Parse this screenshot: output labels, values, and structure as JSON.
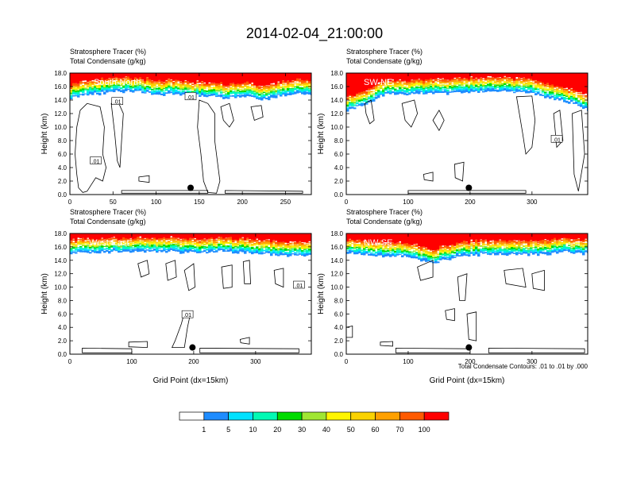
{
  "title": "2014-02-04_21:00:00",
  "colors": {
    "levels": [
      "#ffffff",
      "#1e8cff",
      "#00e1ff",
      "#00fab4",
      "#00dc00",
      "#a0e632",
      "#fff500",
      "#fad200",
      "#ffa000",
      "#ff5a00",
      "#ff0000"
    ]
  },
  "colorbar": {
    "labels": [
      "1",
      "5",
      "10",
      "20",
      "30",
      "40",
      "50",
      "60",
      "70",
      "100"
    ]
  },
  "chart_data": [
    {
      "type": "heatmap",
      "title": "South-North",
      "subtitle_left_1": "Stratosphere Tracer   (%)",
      "subtitle_left_2": "Total Condensate   (g/kg)",
      "ylabel": "Height (km)",
      "xlabel": "",
      "xlim": [
        0,
        280
      ],
      "xticks": [
        "0",
        "50",
        "100",
        "150",
        "200",
        "250"
      ],
      "xtick_values": [
        0,
        50,
        100,
        150,
        200,
        250
      ],
      "ylim": [
        0,
        18
      ],
      "yticks": [
        "0.0",
        "2.0",
        "4.0",
        "6.0",
        "8.0",
        "10.0",
        "12.0",
        "14.0",
        "16.0",
        "18.0"
      ],
      "contour_labels": [
        ".01",
        ".01",
        ".01"
      ],
      "marker_x": 140,
      "tropopause": [
        [
          0,
          14.2
        ],
        [
          20,
          14.8
        ],
        [
          40,
          15.0
        ],
        [
          60,
          15.3
        ],
        [
          80,
          15.2
        ],
        [
          100,
          14.8
        ],
        [
          120,
          14.9
        ],
        [
          140,
          14.6
        ],
        [
          160,
          14.5
        ],
        [
          180,
          14.3
        ],
        [
          200,
          14.6
        ],
        [
          220,
          14.0
        ],
        [
          240,
          14.5
        ],
        [
          260,
          14.9
        ],
        [
          280,
          14.9
        ]
      ]
    },
    {
      "type": "heatmap",
      "title": "SW-NE",
      "subtitle_left_1": "Stratosphere Tracer   (%)",
      "subtitle_left_2": "Total Condensate   (g/kg)",
      "ylabel": "Height (km)",
      "xlabel": "",
      "xlim": [
        0,
        390
      ],
      "xticks": [
        "0",
        "100",
        "200",
        "300"
      ],
      "xtick_values": [
        0,
        100,
        200,
        300
      ],
      "ylim": [
        0,
        18
      ],
      "yticks": [
        "0.0",
        "2.0",
        "4.0",
        "6.0",
        "8.0",
        "10.0",
        "12.0",
        "14.0",
        "16.0",
        "18.0"
      ],
      "contour_labels": [
        ".01"
      ],
      "marker_x": 198,
      "tropopause": [
        [
          0,
          12.5
        ],
        [
          30,
          13.2
        ],
        [
          60,
          14.8
        ],
        [
          100,
          14.9
        ],
        [
          150,
          15.0
        ],
        [
          200,
          15.2
        ],
        [
          250,
          15.3
        ],
        [
          300,
          15.0
        ],
        [
          340,
          14.0
        ],
        [
          370,
          13.3
        ],
        [
          390,
          12.5
        ]
      ]
    },
    {
      "type": "heatmap",
      "title": "West-East",
      "subtitle_left_1": "Stratosphere Tracer   (%)",
      "subtitle_left_2": "Total Condensate   (g/kg)",
      "ylabel": "Height (km)",
      "xlabel": "Grid Point (dx=15km)",
      "xlim": [
        0,
        390
      ],
      "xticks": [
        "0",
        "100",
        "200",
        "300"
      ],
      "xtick_values": [
        0,
        100,
        200,
        300
      ],
      "ylim": [
        0,
        18
      ],
      "yticks": [
        "0.0",
        "2.0",
        "4.0",
        "6.0",
        "8.0",
        "10.0",
        "12.0",
        "14.0",
        "16.0",
        "18.0"
      ],
      "contour_labels": [
        ".01",
        ".01"
      ],
      "marker_x": 198,
      "tropopause": [
        [
          0,
          15.0
        ],
        [
          50,
          15.2
        ],
        [
          100,
          15.3
        ],
        [
          150,
          15.3
        ],
        [
          200,
          15.1
        ],
        [
          250,
          15.3
        ],
        [
          300,
          15.0
        ],
        [
          350,
          14.6
        ],
        [
          390,
          14.8
        ]
      ]
    },
    {
      "type": "heatmap",
      "title": "NW-SE",
      "subtitle_left_1": "Stratosphere Tracer   (%)",
      "subtitle_left_2": "Total Condensate   (g/kg)",
      "ylabel": "Height (km)",
      "xlabel": "Grid Point (dx=15km)",
      "xlim": [
        0,
        390
      ],
      "xticks": [
        "0",
        "100",
        "200",
        "300"
      ],
      "xtick_values": [
        0,
        100,
        200,
        300
      ],
      "ylim": [
        0,
        18
      ],
      "yticks": [
        "0.0",
        "2.0",
        "4.0",
        "6.0",
        "8.0",
        "10.0",
        "12.0",
        "14.0",
        "16.0",
        "18.0"
      ],
      "contour_labels": [],
      "marker_x": 198,
      "footnote": "Total Condensate Contours: .01 to .01 by .000",
      "tropopause": [
        [
          0,
          15.0
        ],
        [
          50,
          14.7
        ],
        [
          100,
          14.5
        ],
        [
          140,
          13.6
        ],
        [
          180,
          14.6
        ],
        [
          240,
          15.0
        ],
        [
          300,
          14.8
        ],
        [
          350,
          15.2
        ],
        [
          390,
          15.0
        ]
      ]
    }
  ]
}
